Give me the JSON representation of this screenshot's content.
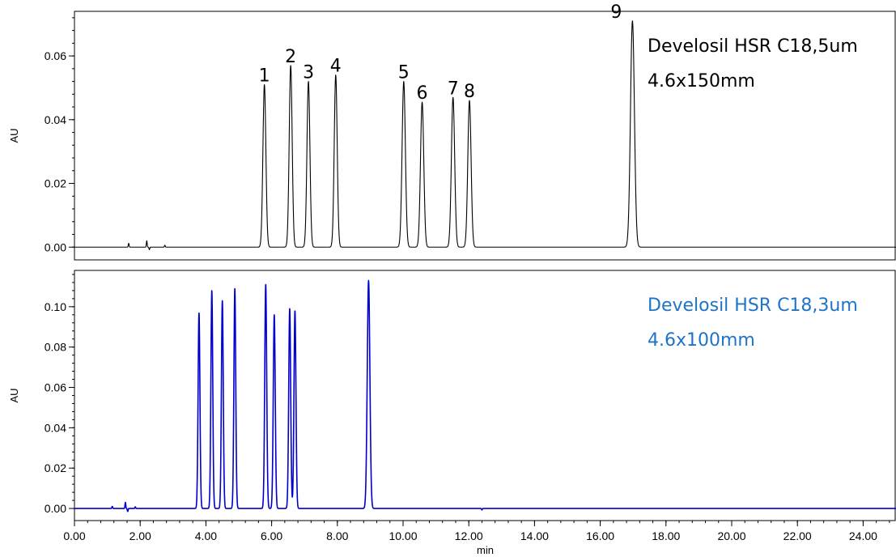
{
  "chart_data": [
    {
      "type": "line",
      "panel": "top",
      "ylabel": "AU",
      "xlim": [
        0,
        25
      ],
      "ylim": [
        -0.004,
        0.074
      ],
      "yticks": [
        0.0,
        0.02,
        0.04,
        0.06
      ],
      "ytick_labels": [
        "0.00",
        "0.02",
        "0.04",
        "0.06"
      ],
      "line_color": "#000000",
      "annotation": {
        "line1": "Develosil HSR C18,5um",
        "line2": "4.6x150mm",
        "color": "#000000"
      },
      "peaks": [
        {
          "label": "1",
          "rt": 5.78,
          "height": 0.051,
          "sigma": 0.045
        },
        {
          "label": "2",
          "rt": 6.58,
          "height": 0.057,
          "sigma": 0.045
        },
        {
          "label": "3",
          "rt": 7.12,
          "height": 0.052,
          "sigma": 0.045
        },
        {
          "label": "4",
          "rt": 7.95,
          "height": 0.054,
          "sigma": 0.045
        },
        {
          "label": "5",
          "rt": 10.02,
          "height": 0.052,
          "sigma": 0.05
        },
        {
          "label": "6",
          "rt": 10.58,
          "height": 0.0455,
          "sigma": 0.05
        },
        {
          "label": "7",
          "rt": 11.52,
          "height": 0.047,
          "sigma": 0.05
        },
        {
          "label": "8",
          "rt": 12.02,
          "height": 0.046,
          "sigma": 0.05
        },
        {
          "label": "9",
          "rt": 16.98,
          "height": 0.071,
          "sigma": 0.06
        }
      ],
      "baseline_noise": [
        {
          "rt": 1.65,
          "height": 0.0012
        },
        {
          "rt": 2.2,
          "height": 0.002
        },
        {
          "rt": 2.28,
          "height": -0.0008
        },
        {
          "rt": 2.75,
          "height": 0.0006
        }
      ]
    },
    {
      "type": "line",
      "panel": "bottom",
      "ylabel": "AU",
      "xlabel": "min",
      "xlim": [
        0,
        25
      ],
      "ylim": [
        -0.006,
        0.118
      ],
      "xticks": [
        0,
        2,
        4,
        6,
        8,
        10,
        12,
        14,
        16,
        18,
        20,
        22,
        24
      ],
      "xtick_labels": [
        "0.00",
        "2.00",
        "4.00",
        "6.00",
        "8.00",
        "10.00",
        "12.00",
        "14.00",
        "16.00",
        "18.00",
        "20.00",
        "22.00",
        "24.00"
      ],
      "yticks": [
        0.0,
        0.02,
        0.04,
        0.06,
        0.08,
        0.1
      ],
      "ytick_labels": [
        "0.00",
        "0.02",
        "0.04",
        "0.06",
        "0.08",
        "0.10"
      ],
      "line_color": "#0000CC",
      "annotation": {
        "line1": "Develosil HSR C18,3um",
        "line2": "4.6x100mm",
        "color": "#1F74C7"
      },
      "peaks": [
        {
          "rt": 3.79,
          "height": 0.097,
          "sigma": 0.028
        },
        {
          "rt": 4.18,
          "height": 0.108,
          "sigma": 0.028
        },
        {
          "rt": 4.5,
          "height": 0.103,
          "sigma": 0.028
        },
        {
          "rt": 4.88,
          "height": 0.109,
          "sigma": 0.028
        },
        {
          "rt": 5.82,
          "height": 0.111,
          "sigma": 0.03
        },
        {
          "rt": 6.08,
          "height": 0.096,
          "sigma": 0.03
        },
        {
          "rt": 6.55,
          "height": 0.099,
          "sigma": 0.03
        },
        {
          "rt": 6.71,
          "height": 0.098,
          "sigma": 0.03
        },
        {
          "rt": 8.95,
          "height": 0.113,
          "sigma": 0.04
        }
      ],
      "baseline_noise": [
        {
          "rt": 1.15,
          "height": 0.001
        },
        {
          "rt": 1.55,
          "height": 0.003
        },
        {
          "rt": 1.62,
          "height": -0.0015
        },
        {
          "rt": 1.85,
          "height": 0.0008
        },
        {
          "rt": 12.4,
          "height": -0.0007
        }
      ]
    }
  ]
}
